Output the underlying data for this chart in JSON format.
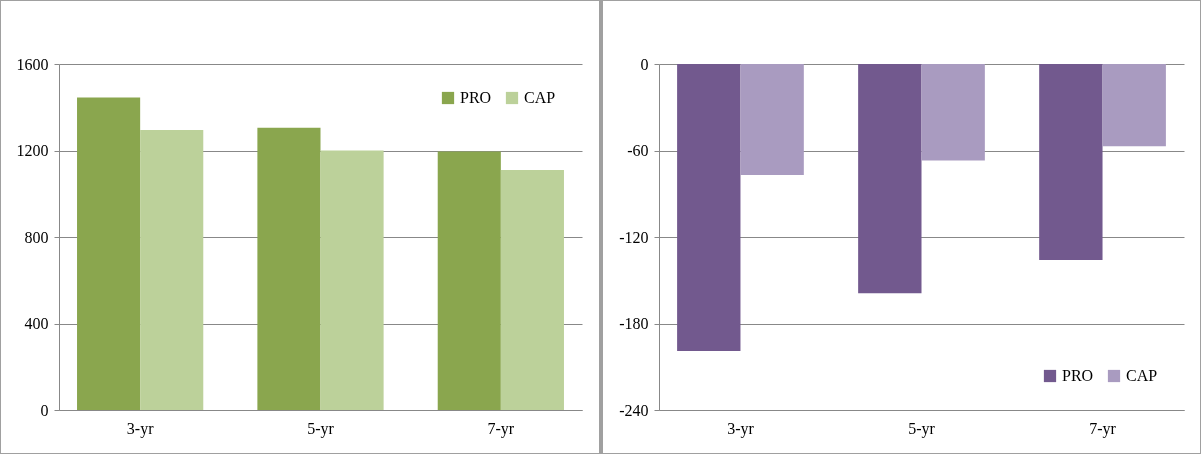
{
  "chart_data": [
    {
      "type": "bar",
      "categories": [
        "3-yr",
        "5-yr",
        "7-yr"
      ],
      "series": [
        {
          "name": "PRO",
          "color": "#8aa64e",
          "values": [
            1445,
            1305,
            1195
          ]
        },
        {
          "name": "CAP",
          "color": "#bcd19a",
          "values": [
            1295,
            1200,
            1110
          ]
        }
      ],
      "ylim": [
        0,
        1600
      ],
      "yticks": [
        0,
        400,
        800,
        1200,
        1600
      ],
      "grid": "y",
      "legend": "top right"
    },
    {
      "type": "bar",
      "categories": [
        "3-yr",
        "5-yr",
        "7-yr"
      ],
      "series": [
        {
          "name": "PRO",
          "color": "#72598e",
          "values": [
            -199,
            -159,
            -136
          ]
        },
        {
          "name": "CAP",
          "color": "#a99bc0",
          "values": [
            -77,
            -67,
            -57
          ]
        }
      ],
      "ylim": [
        -240,
        0
      ],
      "yticks": [
        -240,
        -180,
        -120,
        -60,
        0
      ],
      "grid": "y",
      "legend": "bottom right"
    }
  ]
}
